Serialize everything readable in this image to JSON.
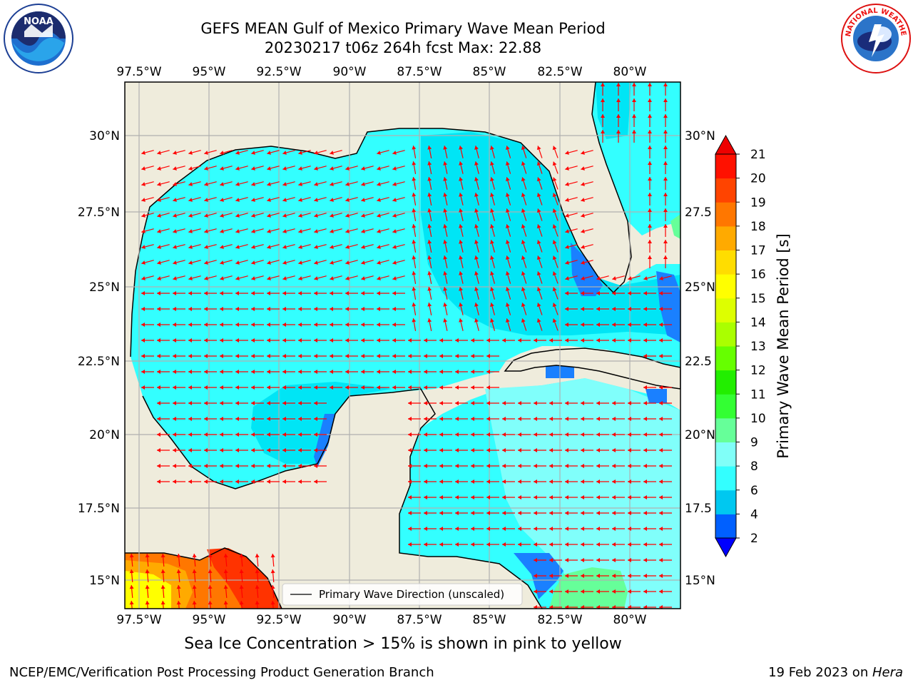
{
  "title": {
    "line1": "GEFS MEAN Gulf of Mexico Primary Wave Mean Period",
    "line2": "20230217 t06z 264h fcst   Max: 22.88"
  },
  "map": {
    "lon_labels": [
      "97.5°W",
      "95°W",
      "92.5°W",
      "90°W",
      "87.5°W",
      "85°W",
      "82.5°W",
      "80°W"
    ],
    "lat_labels_left": [
      "30°N",
      "27.5°N",
      "25°N",
      "22.5°N",
      "20°N",
      "17.5°N",
      "15°N"
    ],
    "lat_labels_right": [
      "30°N",
      "27.5",
      "25°N",
      "22.5",
      "20°N",
      "17.5",
      "15°N"
    ],
    "legend_label": "Primary Wave Direction (unscaled)",
    "colors": {
      "land": "#efecdc",
      "wave_5": "#00e5f5",
      "wave_7": "#33ffff",
      "wave_8": "#80fffb",
      "wave_3": "#1a80ff",
      "wave_9": "#66ff99",
      "arrow": "#ff0000",
      "grid": "#b0b0b0"
    }
  },
  "colorbar": {
    "label": "Primary Wave Mean Period [s]",
    "ticks": [
      "2",
      "4",
      "6",
      "8",
      "9",
      "10",
      "11",
      "12",
      "13",
      "14",
      "15",
      "16",
      "17",
      "18",
      "19",
      "20",
      "21"
    ],
    "colors": [
      "#0000ff",
      "#0060ff",
      "#00c8f0",
      "#33ffff",
      "#80fff8",
      "#66ff99",
      "#33ff33",
      "#22ee00",
      "#66ff00",
      "#aaff00",
      "#ddff00",
      "#ffff00",
      "#ffdd00",
      "#ffaa00",
      "#ff7700",
      "#ff4400",
      "#ff1100",
      "#ee0000"
    ]
  },
  "ice_note": "Sea Ice Concentration > 15% is shown in pink to yellow",
  "footer": {
    "left": "NCEP/EMC/Verification Post Processing Product Generation Branch",
    "right_prefix": "19 Feb 2023 on ",
    "right_host": "Hera"
  },
  "logos": {
    "noaa_text": "NOAA",
    "nws_text": "NATIONAL WEATHER SERVICE"
  }
}
